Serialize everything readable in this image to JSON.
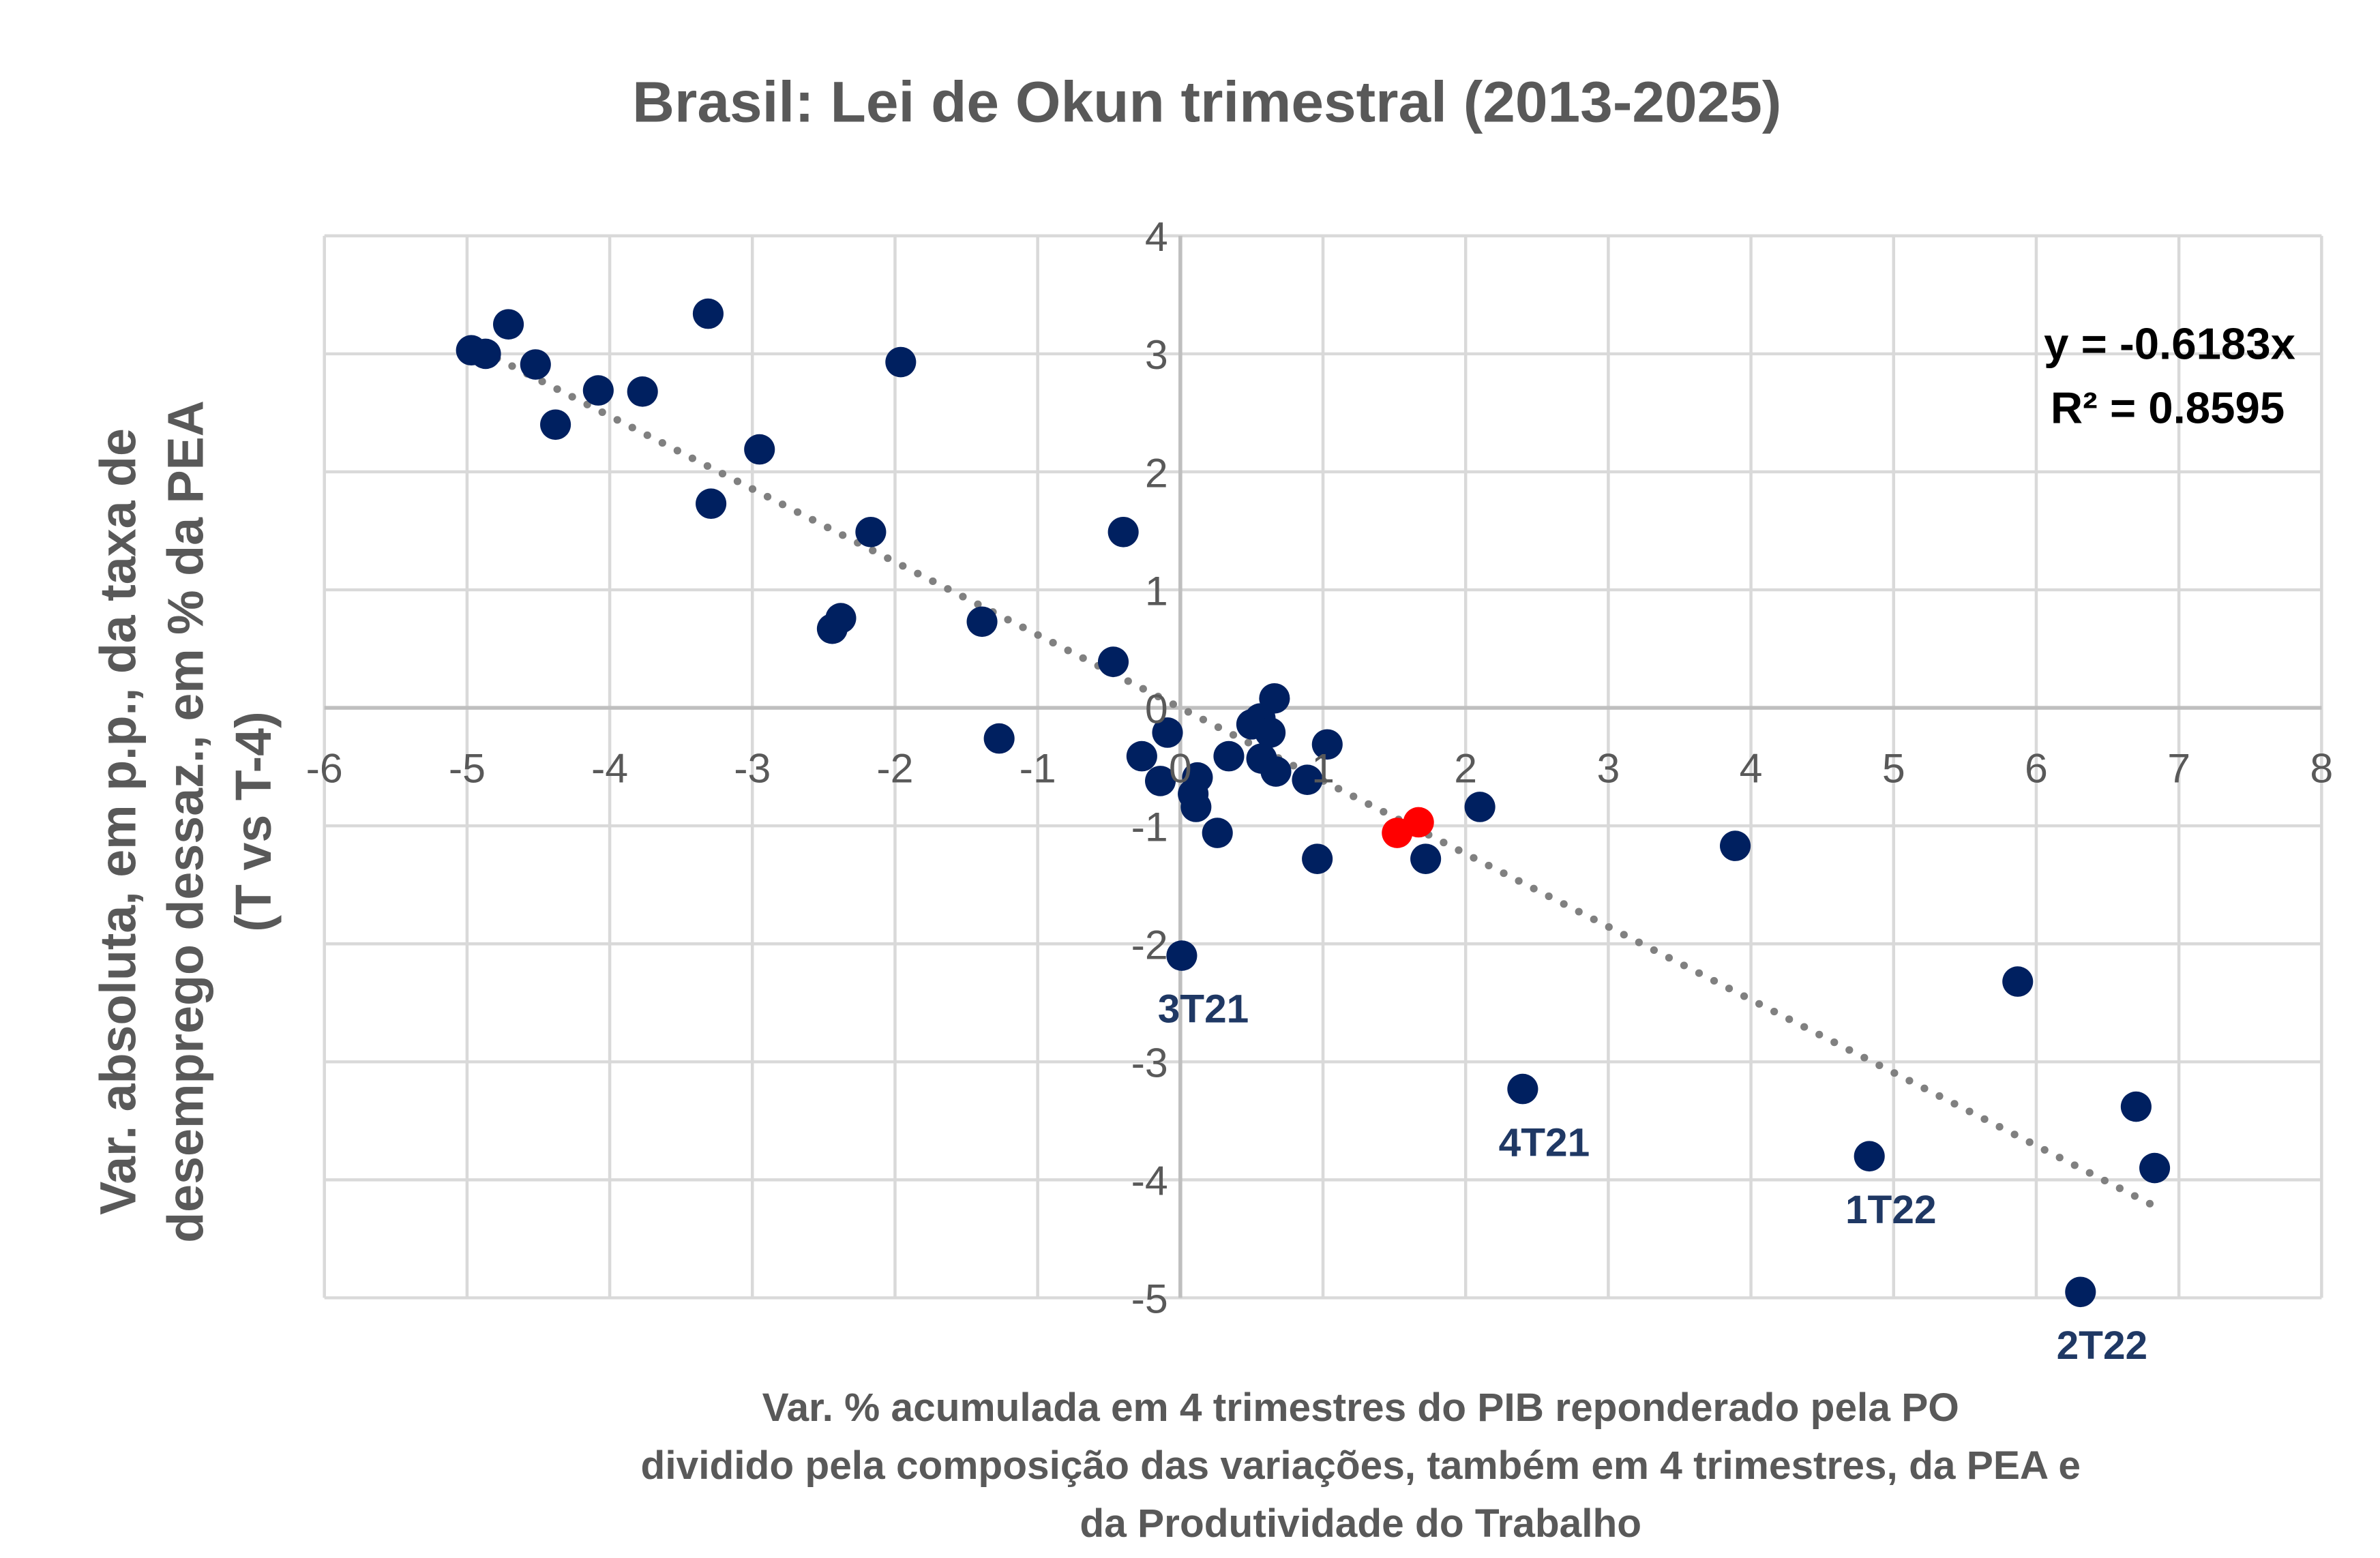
{
  "chart_data": {
    "type": "scatter",
    "title": "Brasil: Lei de Okun trimestral (2013-2025)",
    "xlabel_lines": [
      "Var. % acumulada em 4 trimestres do PIB reponderado pela PO",
      "dividido pela composição das variações, também em 4 trimestres, da PEA e",
      "da Produtividade do Trabalho"
    ],
    "ylabel_lines": [
      "Var. absoluta, em p.p., da taxa de",
      "desemprego dessaz., em % da PEA",
      "(T vs T-4)"
    ],
    "xlim": [
      -6,
      8
    ],
    "ylim": [
      -5,
      4
    ],
    "xticks": [
      -6,
      -5,
      -4,
      -3,
      -2,
      -1,
      0,
      1,
      2,
      3,
      4,
      5,
      6,
      7,
      8
    ],
    "yticks": [
      -5,
      -4,
      -3,
      -2,
      -1,
      0,
      1,
      2,
      3,
      4
    ],
    "grid": true,
    "colors": {
      "points": "#002060",
      "highlight": "#ff0000",
      "trend": "#808080",
      "grid": "#d9d9d9"
    },
    "points": [
      [
        -4.97,
        3.03
      ],
      [
        -4.87,
        3.0
      ],
      [
        -4.71,
        3.25
      ],
      [
        -4.52,
        2.91
      ],
      [
        -4.38,
        2.4
      ],
      [
        -4.08,
        2.69
      ],
      [
        -3.77,
        2.68
      ],
      [
        -3.31,
        3.34
      ],
      [
        -3.29,
        1.73
      ],
      [
        -2.95,
        2.19
      ],
      [
        -1.96,
        2.93
      ],
      [
        -2.17,
        1.49
      ],
      [
        -2.44,
        0.67
      ],
      [
        -2.38,
        0.76
      ],
      [
        -1.39,
        0.73
      ],
      [
        -1.27,
        -0.26
      ],
      [
        -0.47,
        0.39
      ],
      [
        -0.4,
        1.49
      ],
      [
        -0.27,
        -0.41
      ],
      [
        -0.14,
        -0.62
      ],
      [
        -0.09,
        -0.21
      ],
      [
        0.12,
        -0.59
      ],
      [
        0.09,
        -0.73
      ],
      [
        0.11,
        -0.84
      ],
      [
        0.26,
        -1.06
      ],
      [
        0.34,
        -0.41
      ],
      [
        0.5,
        -0.14
      ],
      [
        0.56,
        -0.09
      ],
      [
        0.57,
        -0.43
      ],
      [
        0.63,
        -0.21
      ],
      [
        0.66,
        0.08
      ],
      [
        0.67,
        -0.54
      ],
      [
        0.89,
        -0.61
      ],
      [
        1.03,
        -0.31
      ],
      [
        0.96,
        -1.28
      ],
      [
        1.72,
        -1.28
      ],
      [
        2.1,
        -0.84
      ],
      [
        2.4,
        -3.23
      ],
      [
        3.89,
        -1.17
      ],
      [
        0.01,
        -2.1
      ],
      [
        4.83,
        -3.8
      ],
      [
        5.87,
        -2.32
      ],
      [
        6.31,
        -4.95
      ],
      [
        6.7,
        -3.38
      ],
      [
        6.83,
        -3.9
      ]
    ],
    "highlight_points": [
      [
        1.52,
        -1.06
      ],
      [
        1.67,
        -0.97
      ]
    ],
    "trendline": {
      "slope": -0.6183,
      "intercept": 0,
      "x_range": [
        -5,
        6.83
      ],
      "style": "dotted"
    },
    "equation": "y = -0.6183x",
    "r_squared": "R² = 0.8595",
    "annotations": [
      {
        "label": "3T21",
        "x": 0.01,
        "y": -2.1
      },
      {
        "label": "4T21",
        "x": 2.4,
        "y": -3.23
      },
      {
        "label": "1T22",
        "x": 4.83,
        "y": -3.8
      },
      {
        "label": "2T22",
        "x": 6.31,
        "y": -4.95
      }
    ]
  }
}
